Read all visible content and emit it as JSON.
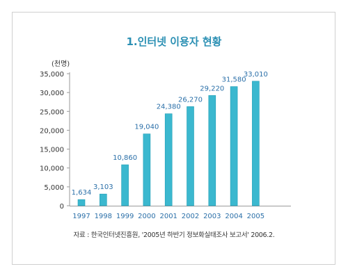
{
  "chart_data": {
    "type": "bar",
    "title": "1.인터넷 이용자 현황",
    "unit_label": "(천명)",
    "categories": [
      "1997",
      "1998",
      "1999",
      "2000",
      "2001",
      "2002",
      "2003",
      "2004",
      "2005"
    ],
    "values": [
      1634,
      3103,
      10860,
      19040,
      24380,
      26270,
      29220,
      31580,
      33010
    ],
    "value_labels": [
      "1,634",
      "3,103",
      "10,860",
      "19,040",
      "24,380",
      "26,270",
      "29,220",
      "31,580",
      "33,010"
    ],
    "ylim": [
      0,
      35000
    ],
    "yticks": [
      0,
      5000,
      10000,
      15000,
      20000,
      25000,
      30000,
      35000
    ],
    "ytick_labels": [
      "0",
      "5,000",
      "10,000",
      "15,000",
      "20,000",
      "25,000",
      "30,000",
      "35,000"
    ],
    "grid": false,
    "colors": {
      "bar": "#3bb8cf",
      "bar_edge": "#1f9db5",
      "axis": "#9a9a9a",
      "title": "#2a8fb3",
      "labels": "#2a6fa8"
    },
    "source": "자료 : 한국인터넷진흥원, '2005년 하반기 정보화실태조사 보고서' 2006.2."
  }
}
